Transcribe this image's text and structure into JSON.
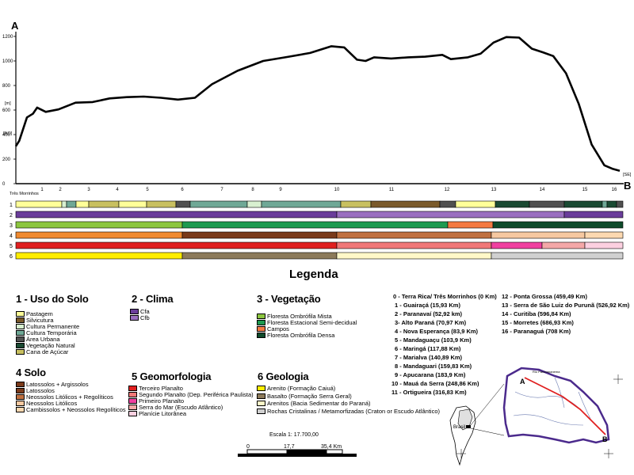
{
  "profile": {
    "label_a": "A",
    "label_b": "B",
    "y_ticks": [
      {
        "label": "1200",
        "v": 1200
      },
      {
        "label": "1000",
        "v": 1000
      },
      {
        "label": "800",
        "v": 800
      },
      {
        "label": "600",
        "v": 600
      },
      {
        "label": "400",
        "v": 400
      },
      {
        "label": "200",
        "v": 200
      },
      {
        "label": "0",
        "v": 0
      }
    ],
    "unit_m": "[m]",
    "dir_no": "[NO]",
    "dir_se": "[SE]",
    "start_name": "Três Morrinhos",
    "point_labels": [
      "1",
      "2",
      "3",
      "4",
      "5",
      "6",
      "7",
      "8",
      "9",
      "10",
      "11",
      "12",
      "13",
      "14",
      "15",
      "16"
    ],
    "elevation_km": [
      0,
      4,
      13,
      20,
      25,
      35,
      50,
      70,
      90,
      110,
      130,
      150,
      170,
      190,
      210,
      230,
      260,
      290,
      320,
      345,
      370,
      385,
      400,
      410,
      420,
      440,
      460,
      480,
      500,
      510,
      530,
      545,
      560,
      575,
      590,
      605,
      618,
      630,
      645,
      660,
      675,
      690,
      700,
      708
    ],
    "elevation_m": [
      305,
      350,
      540,
      570,
      620,
      585,
      605,
      660,
      665,
      695,
      705,
      710,
      700,
      685,
      700,
      810,
      920,
      1000,
      1035,
      1065,
      1120,
      1110,
      1010,
      1000,
      1030,
      1020,
      1030,
      1035,
      1050,
      1015,
      1030,
      1060,
      1150,
      1195,
      1190,
      1100,
      1070,
      1040,
      900,
      650,
      320,
      150,
      120,
      105
    ]
  },
  "bars": {
    "row_labels": [
      "1",
      "2",
      "3",
      "4",
      "5",
      "6"
    ]
  },
  "legend": {
    "title": "Legenda",
    "uso_title": "1 - Uso do Solo",
    "uso": [
      "Pastagem",
      "Silvicutura",
      "Cultura Permanente",
      "Cultura Temporária",
      "Área Urbana",
      "Vegetação Natural",
      "Cana de Açúcar"
    ],
    "clima_title": "2 - Clima",
    "clima": [
      "Cfa",
      "Cfb"
    ],
    "veg_title": "3 - Vegetação",
    "veg": [
      "Floresta Ombrófila Mista",
      "Floresta Estacional Semi-decidual",
      "Campos",
      "Floresta Ombrófila Densa"
    ],
    "solo_title": "4 Solo",
    "solo": [
      "Latossolos + Argissolos",
      "Latossolos",
      "Neossolos Litólicos + Regolíticos",
      "Neossolos Litólicos",
      "Cambissolos + Neossolos Regolíticos"
    ],
    "geomorf_title": "5 Geomorfologia",
    "geomorf": [
      "Terceiro Planalto",
      "Segundo Planalto (Dep. Periférica Paulista)",
      "Primeiro Planalto",
      "Serra do Mar (Escudo Atlântico)",
      "Planície Litorânea"
    ],
    "geol_title": "6 Geologia",
    "geol": [
      "Arenito (Formação Caiuá)",
      "Basalto (Formação Serra Geral)",
      "Arenitos (Bacia Sedimentar do Paraná)",
      "Rochas Cristalinas / Metamorfizadas (Craton or Escudo Atlântico)"
    ]
  },
  "places_left": [
    "0 - Terra Rica/ Três Morrinhos (0 Km)",
    "1 - Guairaçá (15,93 Km)",
    "2 - Paranavaí (52,92 km)",
    "3- Alto Paraná (70,97 Km)",
    "4 - Nova Esperança (83,9 Km)",
    "5 - Mandaguaçu (103,9 Km)",
    "6 - Maringá (117,88 Km)",
    "7 - Marialva (140,89 Km)",
    "8 - Mandaguari (159,83 Km)",
    "9 - Apucarana (183,9 Km)",
    "10 - Mauá da Serra (248,86 Km)",
    "11 - Ortigueira (316,83 Km)"
  ],
  "places_right": [
    "12 - Ponta Grossa (459,49 Km)",
    "13 - Serra de São Luiz do Purunã (526,92 Km)",
    "14 - Curitiba (596,84 Km)",
    "15 - Morretes (686,93 Km)",
    "16 - Paranaguá (708 Km)"
  ],
  "scale": {
    "text": "Escala 1: 17.700,00",
    "tick0": "0",
    "tick1": "17,7",
    "tick2": "35,4 Km"
  },
  "map": {
    "brasil": "Brasil",
    "a": "A",
    "b": "B",
    "rio_parana": "Rio Paranapanema"
  },
  "colors": {
    "pastagem": "#ffff99",
    "silvicultura": "#7a5a2a",
    "cult_perm": "#d8f0d0",
    "cult_temp": "#6fa896",
    "urbana": "#505050",
    "veg_natural": "#1a4a32",
    "cana": "#c8c060",
    "cfa": "#6a3d9a",
    "cfb": "#9a6fc0",
    "fom": "#8cc63f",
    "fes": "#1e9a50",
    "campos": "#f47a42",
    "fod": "#0e4a2a",
    "solo1": "#f08a30",
    "solo2": "#7a3a1a",
    "solo3": "#c07040",
    "solo4": "#f6c8a0",
    "solo5": "#fcd8b0",
    "geo1": "#e02020",
    "geo2": "#f07878",
    "geo3": "#f040a0",
    "geo4": "#f4a8a8",
    "geo5": "#fcd0e0",
    "arenito": "#ffee00",
    "basalto": "#8c7a5a",
    "arenitos": "#fff8c8",
    "rochas": "#d0d0d0"
  }
}
